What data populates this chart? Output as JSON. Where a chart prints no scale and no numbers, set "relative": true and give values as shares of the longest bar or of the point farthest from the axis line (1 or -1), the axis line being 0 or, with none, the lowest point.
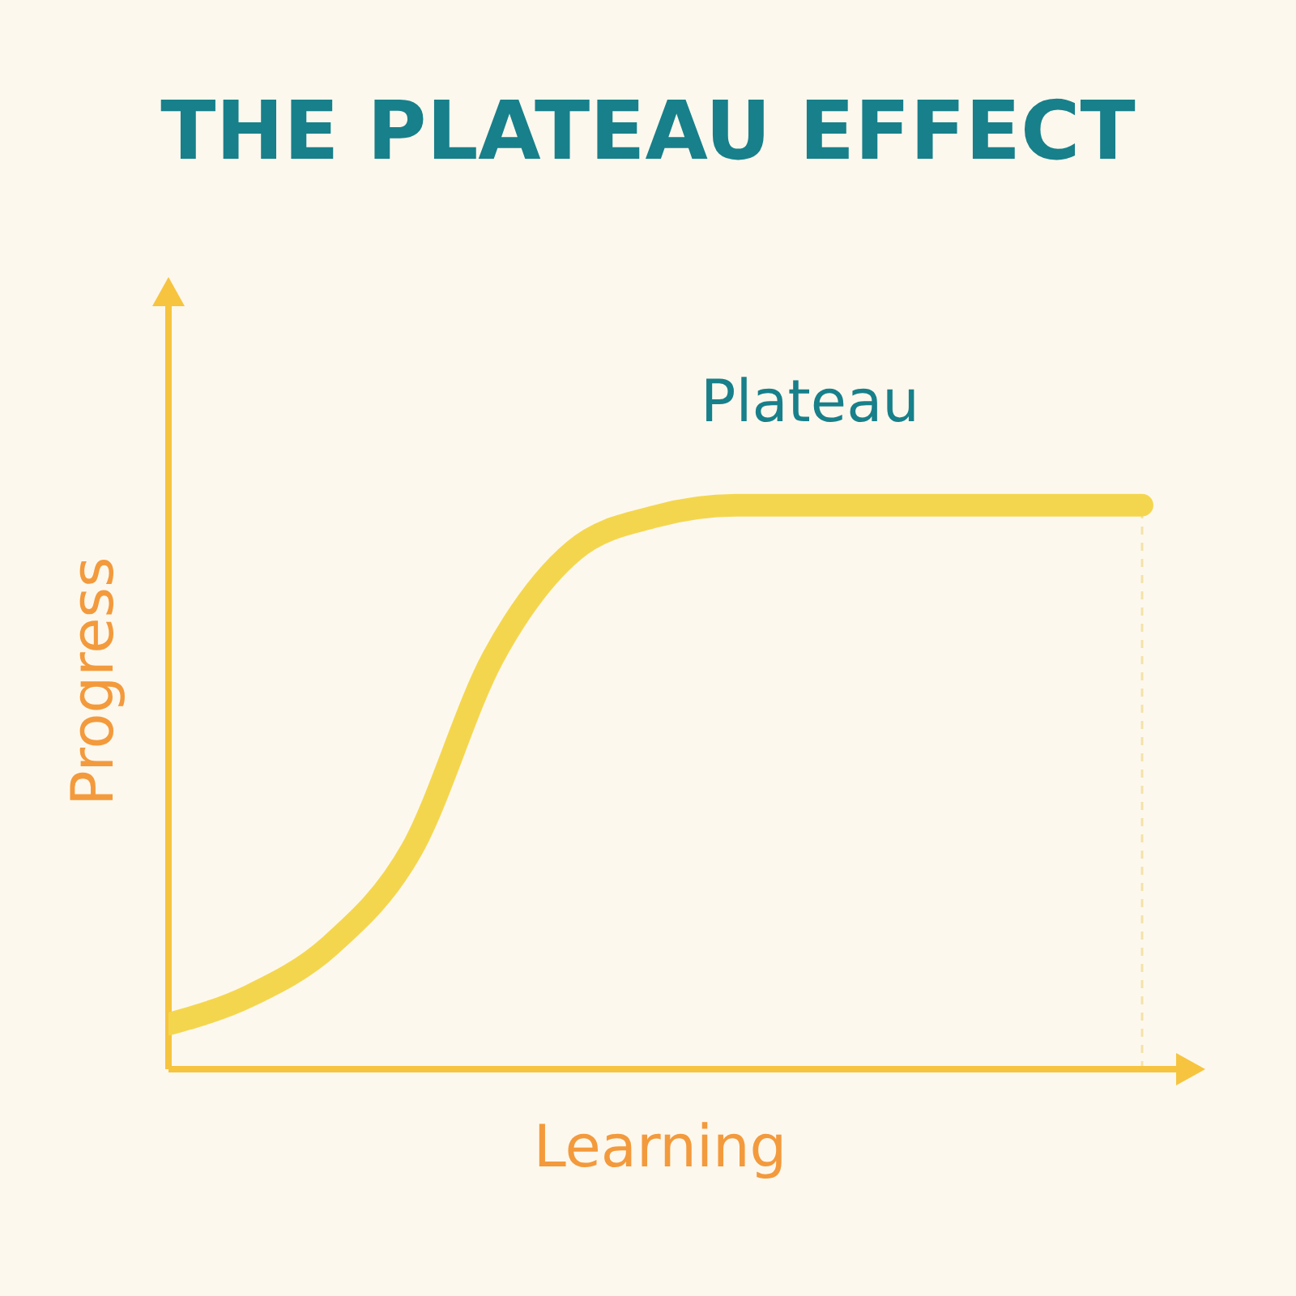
{
  "chart_data": {
    "type": "line",
    "title": "THE PLATEAU EFFECT",
    "xlabel": "Learning",
    "ylabel": "Progress",
    "annotations": [
      "Plateau"
    ],
    "relative": true,
    "categories": [
      null,
      null,
      null,
      null,
      null,
      null,
      null,
      null,
      null,
      null,
      null,
      null,
      null
    ],
    "series": [
      {
        "color": "#f4d64e",
        "values": [
          0.08,
          0.13,
          0.22,
          0.39,
          0.73,
          0.92,
          0.98,
          1,
          1,
          1,
          1,
          1,
          1
        ]
      }
    ]
  }
}
